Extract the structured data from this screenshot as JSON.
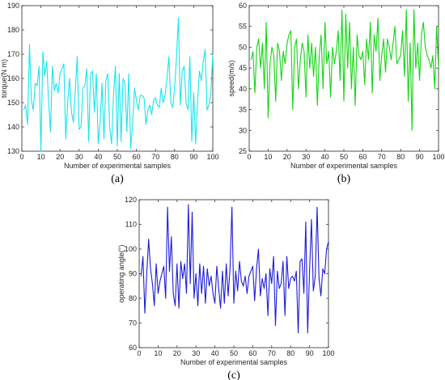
{
  "chart_data": [
    {
      "type": "line",
      "panel_label": "(a)",
      "xlabel": "Number of experimental samples",
      "ylabel": "torque(N m)",
      "xlim": [
        0,
        100
      ],
      "ylim": [
        130,
        190
      ],
      "xticks": [
        0,
        10,
        20,
        30,
        40,
        50,
        60,
        70,
        80,
        90,
        100
      ],
      "yticks": [
        130,
        140,
        150,
        160,
        170,
        180,
        190
      ],
      "grid": false,
      "color": "#19e4ec",
      "x_start": 1,
      "y": [
        147,
        149,
        141,
        174,
        151,
        147,
        158,
        157,
        165,
        130,
        171,
        161,
        167,
        151,
        138,
        165,
        155,
        158,
        154,
        162,
        164,
        166,
        135,
        150,
        160,
        146,
        142,
        155,
        169,
        139,
        140,
        156,
        157,
        164,
        134,
        162,
        163,
        146,
        162,
        133,
        142,
        158,
        135,
        159,
        162,
        140,
        133,
        153,
        165,
        132,
        162,
        134,
        160,
        158,
        138,
        162,
        131,
        141,
        156,
        151,
        147,
        153,
        153,
        152,
        141,
        147,
        149,
        145,
        151,
        152,
        149,
        148,
        156,
        150,
        153,
        160,
        169,
        150,
        148,
        156,
        169,
        185,
        149,
        163,
        165,
        150,
        147,
        169,
        134,
        154,
        133,
        150,
        163,
        159,
        167,
        172,
        147,
        149,
        154,
        170
      ]
    },
    {
      "type": "line",
      "panel_label": "(b)",
      "xlabel": "Number of experimental samples",
      "ylabel": "speed(m/s)",
      "xlim": [
        0,
        100
      ],
      "ylim": [
        25,
        60
      ],
      "xticks": [
        0,
        10,
        20,
        30,
        40,
        50,
        60,
        70,
        80,
        90,
        100
      ],
      "yticks": [
        25,
        30,
        35,
        40,
        45,
        50,
        55,
        60
      ],
      "grid": false,
      "color": "#14d414",
      "x_start": 1,
      "y": [
        47,
        49,
        39,
        50,
        52,
        45,
        51,
        40,
        56,
        33,
        46,
        50,
        48,
        37,
        51,
        49,
        42,
        49,
        46,
        51,
        53,
        54,
        35,
        50,
        52,
        40,
        47,
        51,
        49,
        38,
        53,
        45,
        51,
        43,
        50,
        36,
        48,
        53,
        40,
        56,
        46,
        49,
        38,
        50,
        46,
        49,
        54,
        42,
        59,
        37,
        58,
        45,
        56,
        40,
        50,
        36,
        53,
        48,
        47,
        49,
        41,
        52,
        47,
        56,
        39,
        53,
        49,
        57,
        42,
        48,
        52,
        44,
        52,
        50,
        47,
        51,
        55,
        46,
        47,
        48,
        54,
        43,
        59,
        37,
        51,
        30,
        59,
        45,
        51,
        42,
        53,
        56,
        50,
        48,
        47,
        45,
        48,
        40,
        55,
        45
      ]
    },
    {
      "type": "line",
      "panel_label": "(c)",
      "xlabel": "Number of experimental samples",
      "ylabel": "operating angle(°)",
      "xlim": [
        0,
        100
      ],
      "ylim": [
        60,
        120
      ],
      "xticks": [
        0,
        10,
        20,
        30,
        40,
        50,
        60,
        70,
        80,
        90,
        100
      ],
      "yticks": [
        60,
        70,
        80,
        90,
        100,
        110,
        120
      ],
      "grid": false,
      "color": "#1c1cd8",
      "x_start": 1,
      "y": [
        89,
        97,
        74,
        90,
        104,
        92,
        86,
        77,
        94,
        82,
        87,
        90,
        93,
        80,
        117,
        91,
        105,
        82,
        77,
        94,
        76,
        95,
        88,
        94,
        82,
        118,
        86,
        115,
        80,
        90,
        77,
        94,
        82,
        93,
        78,
        92,
        85,
        89,
        82,
        78,
        93,
        84,
        76,
        91,
        78,
        94,
        81,
        92,
        117,
        78,
        91,
        83,
        95,
        87,
        85,
        89,
        82,
        89,
        91,
        93,
        79,
        92,
        100,
        81,
        88,
        84,
        90,
        73,
        92,
        86,
        97,
        69,
        91,
        84,
        86,
        95,
        73,
        97,
        84,
        88,
        89,
        87,
        91,
        66,
        95,
        96,
        82,
        111,
        66,
        91,
        112,
        83,
        89,
        117,
        88,
        81,
        92,
        90,
        100,
        103
      ]
    }
  ]
}
